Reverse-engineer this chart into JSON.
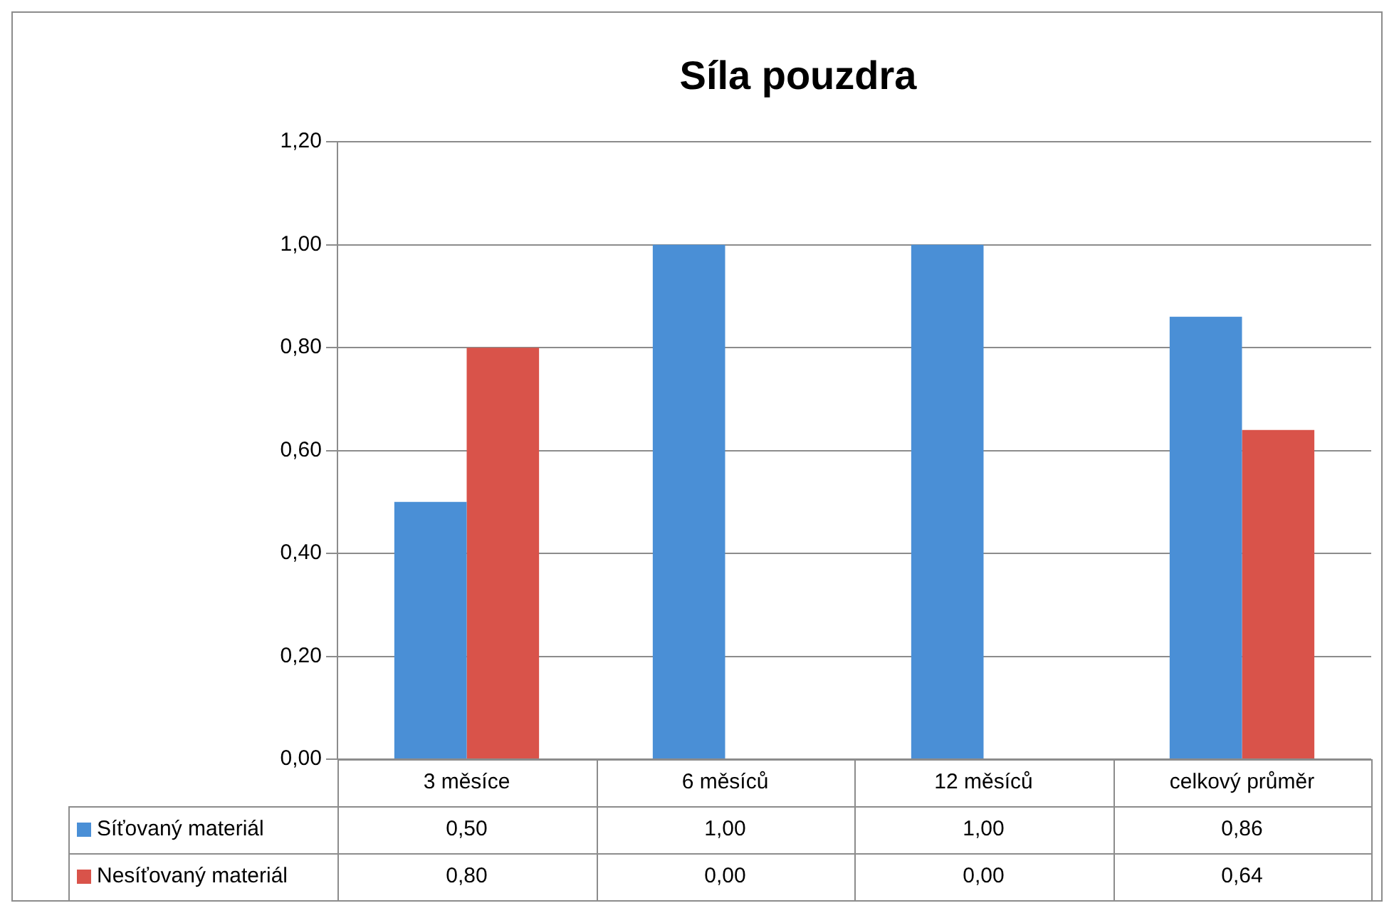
{
  "chart_data": {
    "type": "bar",
    "title": "Síla pouzdra",
    "categories": [
      "3 měsíce",
      "6 měsíců",
      "12 měsíců",
      "celkový průměr"
    ],
    "series": [
      {
        "name": "Síťovaný materiál",
        "color": "#4a8fd6",
        "values": [
          0.5,
          1.0,
          1.0,
          0.86
        ],
        "value_labels": [
          "0,50",
          "1,00",
          "1,00",
          "0,86"
        ]
      },
      {
        "name": "Nesíťovaný materiál",
        "color": "#d9534a",
        "values": [
          0.8,
          0.0,
          0.0,
          0.64
        ],
        "value_labels": [
          "0,80",
          "0,00",
          "0,00",
          "0,64"
        ]
      }
    ],
    "ylim": [
      0,
      1.2
    ],
    "yticks": [
      {
        "value": 0,
        "label": "0,00"
      },
      {
        "value": 0.2,
        "label": "0,20"
      },
      {
        "value": 0.4,
        "label": "0,40"
      },
      {
        "value": 0.6,
        "label": "0,60"
      },
      {
        "value": 0.8,
        "label": "0,80"
      },
      {
        "value": 1.0,
        "label": "1,00"
      },
      {
        "value": 1.2,
        "label": "1,20"
      }
    ],
    "grid": "y",
    "legend": "bottom left"
  }
}
